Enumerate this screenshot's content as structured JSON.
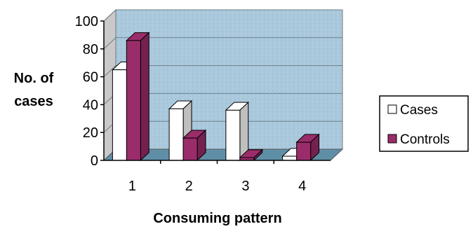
{
  "chart_data": {
    "type": "bar",
    "categories": [
      "1",
      "2",
      "3",
      "4"
    ],
    "series": [
      {
        "name": "Cases",
        "values": [
          65,
          37,
          36,
          3
        ],
        "color": "#ffffff"
      },
      {
        "name": "Controls",
        "values": [
          86,
          16,
          2,
          13
        ],
        "color": "#9b2c6a"
      }
    ],
    "ylim": [
      0,
      100
    ],
    "yticks": [
      "0",
      "20",
      "40",
      "60",
      "80",
      "100"
    ],
    "xlabel": "Consuming pattern",
    "ylabel_line1": "No. of",
    "ylabel_line2": "cases",
    "legend_position": "right",
    "grid": true,
    "plot_background": "#a9c8dc",
    "floor_color": "#5f8fa6"
  }
}
